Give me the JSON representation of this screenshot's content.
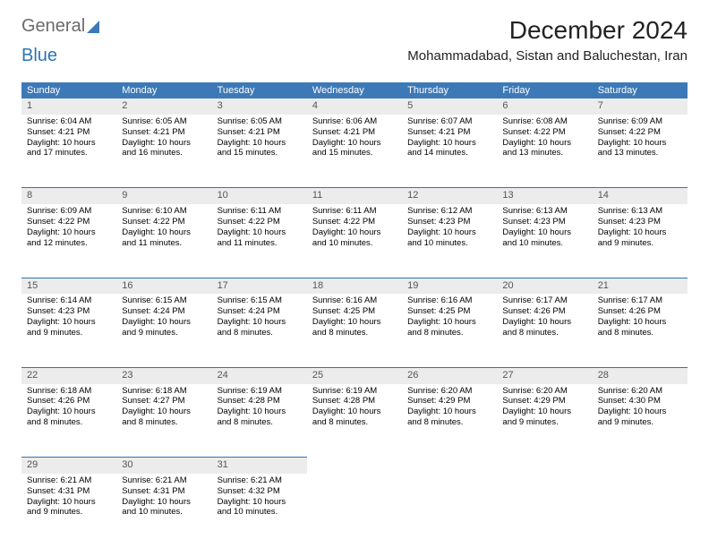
{
  "logo_text1": "General",
  "logo_text2": "Blue",
  "month_title": "December 2024",
  "location": "Mohammadabad, Sistan and Baluchestan, Iran",
  "day_headers": [
    "Sunday",
    "Monday",
    "Tuesday",
    "Wednesday",
    "Thursday",
    "Friday",
    "Saturday"
  ],
  "colors": {
    "header_bg": "#3d79b7",
    "border": "#2e74b5",
    "daynum_bg": "#ececec"
  },
  "weeks": [
    [
      {
        "n": "1",
        "sr": "6:04 AM",
        "ss": "4:21 PM",
        "dh": "10",
        "dm": "17"
      },
      {
        "n": "2",
        "sr": "6:05 AM",
        "ss": "4:21 PM",
        "dh": "10",
        "dm": "16"
      },
      {
        "n": "3",
        "sr": "6:05 AM",
        "ss": "4:21 PM",
        "dh": "10",
        "dm": "15"
      },
      {
        "n": "4",
        "sr": "6:06 AM",
        "ss": "4:21 PM",
        "dh": "10",
        "dm": "15"
      },
      {
        "n": "5",
        "sr": "6:07 AM",
        "ss": "4:21 PM",
        "dh": "10",
        "dm": "14"
      },
      {
        "n": "6",
        "sr": "6:08 AM",
        "ss": "4:22 PM",
        "dh": "10",
        "dm": "13"
      },
      {
        "n": "7",
        "sr": "6:09 AM",
        "ss": "4:22 PM",
        "dh": "10",
        "dm": "13"
      }
    ],
    [
      {
        "n": "8",
        "sr": "6:09 AM",
        "ss": "4:22 PM",
        "dh": "10",
        "dm": "12"
      },
      {
        "n": "9",
        "sr": "6:10 AM",
        "ss": "4:22 PM",
        "dh": "10",
        "dm": "11"
      },
      {
        "n": "10",
        "sr": "6:11 AM",
        "ss": "4:22 PM",
        "dh": "10",
        "dm": "11"
      },
      {
        "n": "11",
        "sr": "6:11 AM",
        "ss": "4:22 PM",
        "dh": "10",
        "dm": "10"
      },
      {
        "n": "12",
        "sr": "6:12 AM",
        "ss": "4:23 PM",
        "dh": "10",
        "dm": "10"
      },
      {
        "n": "13",
        "sr": "6:13 AM",
        "ss": "4:23 PM",
        "dh": "10",
        "dm": "10"
      },
      {
        "n": "14",
        "sr": "6:13 AM",
        "ss": "4:23 PM",
        "dh": "10",
        "dm": "9"
      }
    ],
    [
      {
        "n": "15",
        "sr": "6:14 AM",
        "ss": "4:23 PM",
        "dh": "10",
        "dm": "9"
      },
      {
        "n": "16",
        "sr": "6:15 AM",
        "ss": "4:24 PM",
        "dh": "10",
        "dm": "9"
      },
      {
        "n": "17",
        "sr": "6:15 AM",
        "ss": "4:24 PM",
        "dh": "10",
        "dm": "8"
      },
      {
        "n": "18",
        "sr": "6:16 AM",
        "ss": "4:25 PM",
        "dh": "10",
        "dm": "8"
      },
      {
        "n": "19",
        "sr": "6:16 AM",
        "ss": "4:25 PM",
        "dh": "10",
        "dm": "8"
      },
      {
        "n": "20",
        "sr": "6:17 AM",
        "ss": "4:26 PM",
        "dh": "10",
        "dm": "8"
      },
      {
        "n": "21",
        "sr": "6:17 AM",
        "ss": "4:26 PM",
        "dh": "10",
        "dm": "8"
      }
    ],
    [
      {
        "n": "22",
        "sr": "6:18 AM",
        "ss": "4:26 PM",
        "dh": "10",
        "dm": "8"
      },
      {
        "n": "23",
        "sr": "6:18 AM",
        "ss": "4:27 PM",
        "dh": "10",
        "dm": "8"
      },
      {
        "n": "24",
        "sr": "6:19 AM",
        "ss": "4:28 PM",
        "dh": "10",
        "dm": "8"
      },
      {
        "n": "25",
        "sr": "6:19 AM",
        "ss": "4:28 PM",
        "dh": "10",
        "dm": "8"
      },
      {
        "n": "26",
        "sr": "6:20 AM",
        "ss": "4:29 PM",
        "dh": "10",
        "dm": "8"
      },
      {
        "n": "27",
        "sr": "6:20 AM",
        "ss": "4:29 PM",
        "dh": "10",
        "dm": "9"
      },
      {
        "n": "28",
        "sr": "6:20 AM",
        "ss": "4:30 PM",
        "dh": "10",
        "dm": "9"
      }
    ],
    [
      {
        "n": "29",
        "sr": "6:21 AM",
        "ss": "4:31 PM",
        "dh": "10",
        "dm": "9"
      },
      {
        "n": "30",
        "sr": "6:21 AM",
        "ss": "4:31 PM",
        "dh": "10",
        "dm": "10"
      },
      {
        "n": "31",
        "sr": "6:21 AM",
        "ss": "4:32 PM",
        "dh": "10",
        "dm": "10"
      },
      null,
      null,
      null,
      null
    ]
  ],
  "labels": {
    "sunrise": "Sunrise:",
    "sunset": "Sunset:",
    "daylight": "Daylight:",
    "hours": "hours",
    "and": "and",
    "minutes": "minutes."
  }
}
